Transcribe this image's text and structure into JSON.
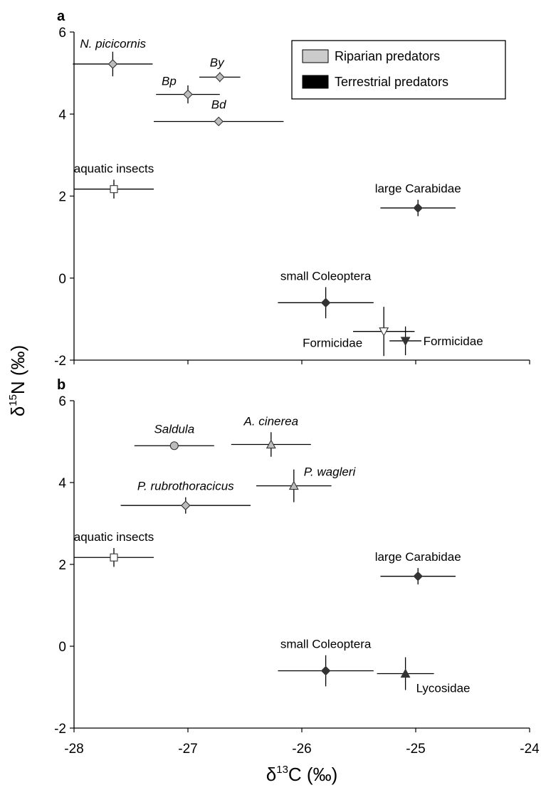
{
  "chart_data": [
    {
      "type": "scatter",
      "panel_label": "a",
      "xlim": [
        -28,
        -24
      ],
      "ylim": [
        -2,
        6
      ],
      "yticks": [
        "6",
        "4",
        "2",
        "0",
        "-2"
      ],
      "legend": {
        "placement": "top-right",
        "items": [
          {
            "label": "Riparian predators",
            "color": "#cccccc"
          },
          {
            "label": "Terrestrial predators",
            "color": "#000000"
          }
        ]
      },
      "points": [
        {
          "label": "N. picicornis",
          "italic": true,
          "x": -27.66,
          "y": 5.22,
          "xerr": 0.35,
          "yerr": 0.3,
          "marker": "diamond",
          "color": "#bdbdbd",
          "label_anchor": "upper-right"
        },
        {
          "label": "By",
          "italic": true,
          "x": -26.72,
          "y": 4.9,
          "xerr": 0.18,
          "yerr": 0.12,
          "marker": "diamond",
          "color": "#bdbdbd",
          "label_anchor": "above"
        },
        {
          "label": "Bp",
          "italic": true,
          "x": -27.0,
          "y": 4.48,
          "xerr": 0.28,
          "yerr": 0.22,
          "marker": "diamond",
          "color": "#bdbdbd",
          "label_anchor": "upper-left"
        },
        {
          "label": "Bd",
          "italic": true,
          "x": -26.73,
          "y": 3.82,
          "xerr": 0.57,
          "yerr": 0.0,
          "marker": "diamond",
          "color": "#bdbdbd",
          "label_anchor": "above"
        },
        {
          "label": "aquatic insects",
          "italic": false,
          "x": -27.65,
          "y": 2.17,
          "xerr": 0.35,
          "yerr": 0.23,
          "marker": "square",
          "color": "#ffffff",
          "label_anchor": "above"
        },
        {
          "label": "large Carabidae",
          "italic": false,
          "x": -24.98,
          "y": 1.71,
          "xerr": 0.33,
          "yerr": 0.2,
          "marker": "diamond",
          "color": "#333333",
          "label_anchor": "above"
        },
        {
          "label": "small Coleoptera",
          "italic": false,
          "x": -25.79,
          "y": -0.6,
          "xerr": 0.42,
          "yerr": 0.38,
          "marker": "diamond",
          "color": "#333333",
          "label_anchor": "above"
        },
        {
          "label": "Formicidae",
          "italic": false,
          "x": -25.28,
          "y": -1.3,
          "xerr": 0.27,
          "yerr": 0.6,
          "marker": "triangle-down",
          "color": "#ffffff",
          "label_anchor": "below-left"
        },
        {
          "label": "Formicidae",
          "italic": false,
          "x": -25.09,
          "y": -1.53,
          "xerr": 0.14,
          "yerr": 0.35,
          "marker": "triangle-down",
          "color": "#333333",
          "label_anchor": "right"
        }
      ]
    },
    {
      "type": "scatter",
      "panel_label": "b",
      "xlim": [
        -28,
        -24
      ],
      "ylim": [
        -2,
        6
      ],
      "xticks": [
        "-28",
        "-27",
        "-26",
        "-25",
        "-24"
      ],
      "yticks": [
        "6",
        "4",
        "2",
        "0",
        "-2"
      ],
      "points": [
        {
          "label": "Saldula",
          "italic": true,
          "x": -27.12,
          "y": 4.9,
          "xerr": 0.35,
          "yerr": 0.0,
          "marker": "circle",
          "color": "#bdbdbd",
          "label_anchor": "above"
        },
        {
          "label": "A. cinerea",
          "italic": true,
          "x": -26.27,
          "y": 4.93,
          "xerr": 0.35,
          "yerr": 0.3,
          "marker": "triangle-up",
          "color": "#bdbdbd",
          "label_anchor": "above"
        },
        {
          "label": "P. wagleri",
          "italic": true,
          "x": -26.07,
          "y": 3.92,
          "xerr": 0.33,
          "yerr": 0.4,
          "marker": "triangle-up",
          "color": "#bdbdbd",
          "label_anchor": "upper-right"
        },
        {
          "label": "P. rubrothoracicus",
          "italic": true,
          "x": -27.02,
          "y": 3.44,
          "xerr": 0.57,
          "yerr": 0.2,
          "marker": "diamond",
          "color": "#bdbdbd",
          "label_anchor": "above"
        },
        {
          "label": "aquatic insects",
          "italic": false,
          "x": -27.65,
          "y": 2.17,
          "xerr": 0.35,
          "yerr": 0.23,
          "marker": "square",
          "color": "#ffffff",
          "label_anchor": "above"
        },
        {
          "label": "large Carabidae",
          "italic": false,
          "x": -24.98,
          "y": 1.71,
          "xerr": 0.33,
          "yerr": 0.2,
          "marker": "diamond",
          "color": "#333333",
          "label_anchor": "above"
        },
        {
          "label": "small Coleoptera",
          "italic": false,
          "x": -25.79,
          "y": -0.6,
          "xerr": 0.42,
          "yerr": 0.38,
          "marker": "diamond",
          "color": "#333333",
          "label_anchor": "above"
        },
        {
          "label": "Lycosidae",
          "italic": false,
          "x": -25.09,
          "y": -0.67,
          "xerr": 0.25,
          "yerr": 0.4,
          "marker": "triangle-up",
          "color": "#333333",
          "label_anchor": "below-right"
        }
      ]
    }
  ],
  "axes": {
    "ylabel_main": "δ",
    "ylabel_sup": "15",
    "ylabel_rest": "N (‰)",
    "xlabel_main": "δ",
    "xlabel_sup": "13",
    "xlabel_rest": "C (‰)"
  }
}
